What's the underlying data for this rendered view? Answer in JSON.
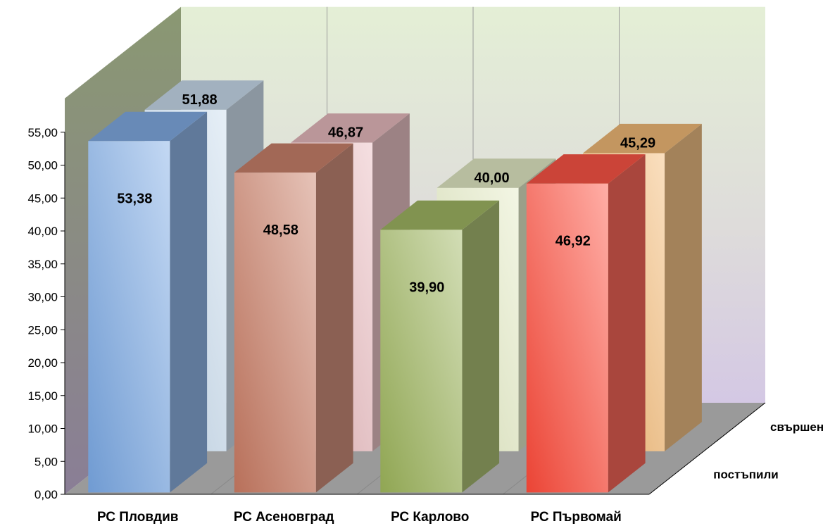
{
  "chart_data": {
    "type": "bar",
    "categories": [
      "РС Пловдив",
      "РС Асеновград",
      "РС Карлово",
      "РС Първомай"
    ],
    "series": [
      {
        "name": "постъпили",
        "values": [
          53.38,
          48.58,
          39.9,
          46.92
        ],
        "labels": [
          "53,38",
          "48,58",
          "39,90",
          "46,92"
        ]
      },
      {
        "name": "свършени",
        "values": [
          51.88,
          46.87,
          40.0,
          45.29
        ],
        "labels": [
          "51,88",
          "46,87",
          "40,00",
          "45,29"
        ]
      }
    ],
    "ylim": [
      0,
      55
    ],
    "yticks": [
      "0,00",
      "5,00",
      "10,00",
      "15,00",
      "20,00",
      "25,00",
      "30,00",
      "35,00",
      "40,00",
      "45,00",
      "50,00",
      "55,00"
    ],
    "grid": false,
    "colors": {
      "front": [
        "#7aa8e4",
        "#c87a62",
        "#9cb45a",
        "#ff4a3a"
      ],
      "back": [
        "#c8dcee",
        "#e8b8bc",
        "#e4ecc4",
        "#f4b870"
      ]
    }
  }
}
